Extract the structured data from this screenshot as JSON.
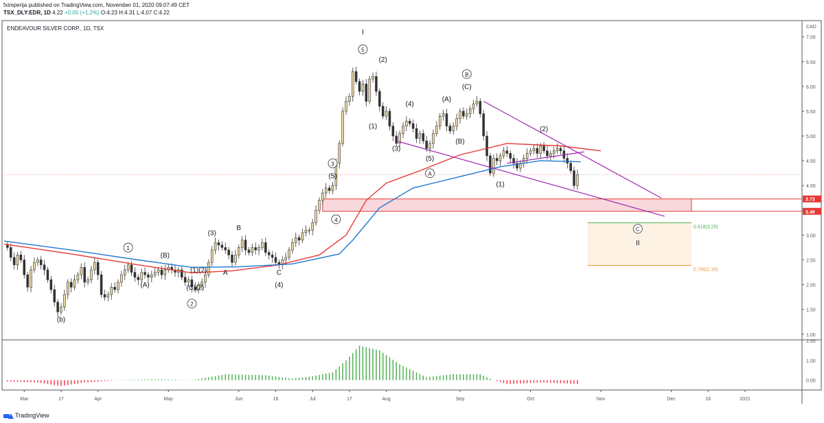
{
  "header": {
    "publisher_line": "fximperija published on TradingView.com, November 01, 2020 09:07:49 CET",
    "symbol": "TSX_DLY:EDR, 1D",
    "last": "4.22",
    "change": "+0.05 (+1.2%)",
    "ohlc": {
      "o": "O:4.23",
      "h": "H:4.31",
      "l": "L:4.07",
      "c": "C:4.22"
    }
  },
  "footer": {
    "brand": "TradingView"
  },
  "colors": {
    "up": "#e8d8a0",
    "down": "#333333",
    "ma_red": "#e53935",
    "ma_blue": "#1e78d2",
    "macd_up": "#4caf50",
    "macd_down": "#f23645",
    "wedge": "#9c27b0",
    "zone_fill": "#f8d8dc",
    "zone_line": "#e53935"
  },
  "chart_data": [
    {
      "type": "candlestick",
      "title": "ENDEAVOUR SILVER CORP., 1D, TSX",
      "currency": "CAD",
      "ylim": [
        0.9,
        7.3
      ],
      "y_ticks": [
        "1.00",
        "1.50",
        "2.00",
        "2.50",
        "3.00",
        "3.50",
        "4.00",
        "4.50",
        "5.00",
        "5.50",
        "6.00",
        "6.50",
        "7.00"
      ],
      "x_ticks": [
        {
          "label": "Mar",
          "t": 6
        },
        {
          "label": "17",
          "t": 17
        },
        {
          "label": "Apr",
          "t": 28
        },
        {
          "label": "May",
          "t": 49
        },
        {
          "label": "Jun",
          "t": 70
        },
        {
          "label": "16",
          "t": 81
        },
        {
          "label": "Jul",
          "t": 92
        },
        {
          "label": "17",
          "t": 103
        },
        {
          "label": "Aug",
          "t": 114
        },
        {
          "label": "Sep",
          "t": 136
        },
        {
          "label": "Oct",
          "t": 157
        },
        {
          "label": "Nov",
          "t": 178
        },
        {
          "label": "Dec",
          "t": 199
        },
        {
          "label": "16",
          "t": 210
        },
        {
          "label": "2021",
          "t": 221
        }
      ],
      "x_range": [
        0,
        238
      ],
      "close": [
        2.75,
        2.55,
        2.4,
        2.6,
        2.5,
        2.2,
        1.95,
        2.3,
        2.45,
        2.5,
        2.4,
        2.3,
        2.1,
        1.9,
        1.65,
        1.45,
        1.55,
        1.8,
        2.05,
        1.95,
        2.1,
        2.2,
        2.35,
        2.05,
        2.1,
        2.3,
        2.45,
        2.2,
        1.8,
        1.75,
        1.8,
        1.95,
        1.9,
        2.05,
        2.2,
        2.3,
        2.4,
        2.25,
        2.15,
        2.1,
        2.25,
        2.2,
        2.15,
        2.2,
        2.25,
        2.3,
        2.2,
        2.3,
        2.35,
        2.3,
        2.25,
        2.3,
        2.15,
        2.05,
        2.1,
        1.95,
        1.9,
        2.0,
        2.05,
        2.2,
        2.45,
        2.7,
        2.85,
        2.8,
        2.75,
        2.7,
        2.6,
        2.45,
        2.6,
        2.75,
        2.9,
        2.7,
        2.65,
        2.75,
        2.7,
        2.75,
        2.85,
        2.65,
        2.6,
        2.55,
        2.45,
        2.4,
        2.5,
        2.55,
        2.7,
        2.85,
        2.95,
        2.9,
        3.05,
        3.1,
        3.1,
        3.25,
        3.5,
        3.7,
        3.85,
        3.95,
        3.9,
        4.0,
        4.45,
        4.85,
        5.5,
        5.7,
        5.8,
        6.3,
        6.1,
        5.9,
        6.05,
        5.7,
        6.15,
        6.2,
        5.9,
        5.6,
        5.4,
        5.5,
        5.2,
        5.0,
        4.85,
        5.05,
        5.2,
        5.3,
        5.25,
        5.15,
        4.95,
        5.05,
        4.9,
        4.75,
        4.85,
        5.05,
        5.2,
        5.4,
        5.45,
        5.2,
        5.1,
        5.2,
        5.35,
        5.5,
        5.4,
        5.45,
        5.55,
        5.65,
        5.7,
        5.45,
        5.0,
        4.6,
        4.25,
        4.55,
        4.5,
        4.6,
        4.7,
        4.65,
        4.55,
        4.45,
        4.35,
        4.45,
        4.55,
        4.65,
        4.7,
        4.75,
        4.65,
        4.8,
        4.7,
        4.6,
        4.65,
        4.7,
        4.75,
        4.7,
        4.55,
        4.45,
        4.3,
        4.0,
        4.22
      ],
      "ohlc_note": "open = previous close; high/low extend beyond body",
      "moving_averages": [
        {
          "color": "red",
          "points": [
            [
              0,
              2.82
            ],
            [
              20,
              2.62
            ],
            [
              40,
              2.4
            ],
            [
              56,
              2.24
            ],
            [
              68,
              2.28
            ],
            [
              82,
              2.4
            ],
            [
              94,
              2.6
            ],
            [
              102,
              3.0
            ],
            [
              108,
              3.7
            ],
            [
              114,
              4.05
            ],
            [
              124,
              4.3
            ],
            [
              136,
              4.62
            ],
            [
              150,
              4.85
            ],
            [
              166,
              4.8
            ],
            [
              178,
              4.7
            ]
          ]
        },
        {
          "color": "blue",
          "points": [
            [
              0,
              2.88
            ],
            [
              20,
              2.7
            ],
            [
              40,
              2.5
            ],
            [
              56,
              2.35
            ],
            [
              70,
              2.36
            ],
            [
              86,
              2.42
            ],
            [
              100,
              2.62
            ],
            [
              104,
              2.9
            ],
            [
              112,
              3.55
            ],
            [
              122,
              3.95
            ],
            [
              136,
              4.18
            ],
            [
              148,
              4.38
            ],
            [
              160,
              4.5
            ],
            [
              172,
              4.48
            ]
          ]
        }
      ],
      "wedge_lines": [
        {
          "from": [
            143,
            5.7
          ],
          "to": [
            196,
            3.75
          ]
        },
        {
          "from": [
            117,
            4.9
          ],
          "to": [
            197,
            3.38
          ]
        },
        {
          "from": [
            150,
            4.45
          ],
          "to": [
            173,
            4.68
          ]
        }
      ],
      "zones": [
        {
          "label": "resistance",
          "y_top": 3.73,
          "y_bottom": 3.48,
          "t_from": 95,
          "t_to": 205,
          "price_tags": [
            "3.73",
            "3.48"
          ]
        },
        {
          "label": "target",
          "y_top": 3.25,
          "y_bottom": 2.39,
          "t_from": 174,
          "t_to": 205,
          "fib_labels": [
            "0.618(3.25)",
            "0.786(2.39)"
          ]
        }
      ],
      "annotations": [
        {
          "text": "I",
          "t": 107,
          "y": 7.05
        },
        {
          "text": "5",
          "t": 107,
          "y": 6.7,
          "circle": true
        },
        {
          "text": "(2)",
          "t": 113,
          "y": 6.5
        },
        {
          "text": "(1)",
          "t": 110,
          "y": 5.15
        },
        {
          "text": "(4)",
          "t": 121,
          "y": 5.6
        },
        {
          "text": "(3)",
          "t": 117,
          "y": 4.7
        },
        {
          "text": "(A)",
          "t": 132,
          "y": 5.7
        },
        {
          "text": "(B)",
          "t": 136,
          "y": 4.85
        },
        {
          "text": "B",
          "t": 138,
          "y": 6.2,
          "circle": true
        },
        {
          "text": "(C)",
          "t": 138,
          "y": 5.95
        },
        {
          "text": "5",
          "t": 127,
          "y": 4.5,
          "circle": false,
          "paren": true
        },
        {
          "text": "A",
          "t": 127,
          "y": 4.2,
          "circle": true
        },
        {
          "text": "(1)",
          "t": 148,
          "y": 3.98
        },
        {
          "text": "(2)",
          "t": 161,
          "y": 5.1
        },
        {
          "text": "3",
          "t": 98,
          "y": 4.4,
          "circle": true
        },
        {
          "text": "(5)",
          "t": 98,
          "y": 4.15
        },
        {
          "text": "4",
          "t": 99,
          "y": 3.27,
          "circle": true
        },
        {
          "text": "1",
          "t": 37,
          "y": 2.7,
          "circle": true
        },
        {
          "text": "(B)",
          "t": 48,
          "y": 2.55
        },
        {
          "text": "(A)",
          "t": 42,
          "y": 1.95
        },
        {
          "text": "(1)(2)",
          "t": 58,
          "y": 2.25
        },
        {
          "text": "(C)(2)",
          "t": 57,
          "y": 1.9
        },
        {
          "text": "2",
          "t": 56,
          "y": 1.57,
          "circle": true
        },
        {
          "text": "(3)",
          "t": 62,
          "y": 3.0
        },
        {
          "text": "B",
          "t": 70,
          "y": 3.1
        },
        {
          "text": "A",
          "t": 66,
          "y": 2.2
        },
        {
          "text": "C",
          "t": 82,
          "y": 2.2
        },
        {
          "text": "(4)",
          "t": 82,
          "y": 1.95
        },
        {
          "text": "(b)",
          "t": 17,
          "y": 1.25
        },
        {
          "text": "C",
          "t": 189,
          "y": 3.08,
          "circle": true
        },
        {
          "text": "II",
          "t": 189,
          "y": 2.8
        }
      ]
    },
    {
      "type": "bar",
      "title": "",
      "name": "histogram",
      "ylim": [
        -0.5,
        2.0
      ],
      "y_ticks": [
        "0.00",
        "1.00",
        "2.00"
      ],
      "keypoints": [
        [
          0,
          -0.06
        ],
        [
          10,
          -0.12
        ],
        [
          17,
          -0.3
        ],
        [
          24,
          -0.12
        ],
        [
          30,
          -0.05
        ],
        [
          36,
          0.02
        ],
        [
          46,
          0.05
        ],
        [
          56,
          0.0
        ],
        [
          60,
          0.12
        ],
        [
          66,
          0.3
        ],
        [
          78,
          0.25
        ],
        [
          86,
          0.08
        ],
        [
          92,
          0.2
        ],
        [
          98,
          0.4
        ],
        [
          102,
          1.0
        ],
        [
          106,
          1.75
        ],
        [
          112,
          1.5
        ],
        [
          118,
          0.8
        ],
        [
          126,
          0.15
        ],
        [
          134,
          0.3
        ],
        [
          142,
          0.3
        ],
        [
          146,
          0.0
        ],
        [
          150,
          -0.2
        ],
        [
          160,
          -0.12
        ],
        [
          173,
          -0.2
        ]
      ]
    }
  ]
}
